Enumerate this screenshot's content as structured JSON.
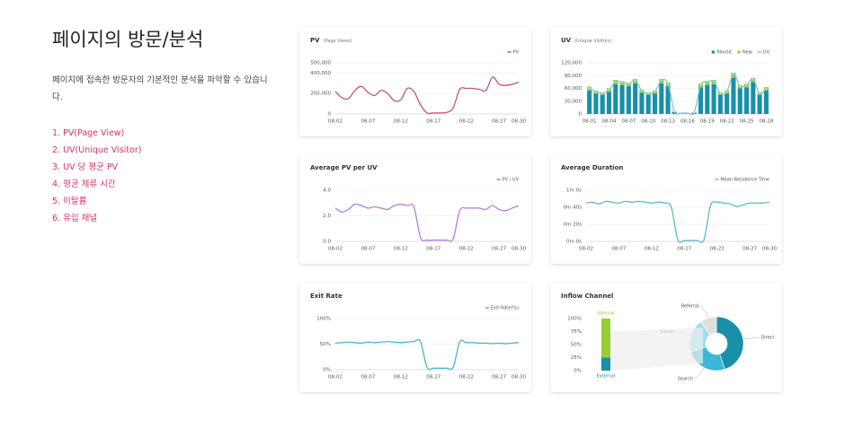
{
  "header": {
    "title": "페이지의 방문/분석",
    "description": "페이지에 접속한 방문자의 기본적인 분석을 파악할 수 있습니다."
  },
  "items": [
    "1. PV(Page View)",
    "2. UV(Unique Visitor)",
    "3. UV 당 평균 PV",
    "4. 평균 체류 시간",
    "5. 이탈률",
    "6. 유입 채널"
  ],
  "chart_data": [
    {
      "type": "line",
      "title": "PV",
      "subtitle": "(Page Views)",
      "categories": [
        "08-02",
        null,
        null,
        null,
        null,
        "08-07",
        null,
        null,
        null,
        null,
        "08-12",
        null,
        null,
        null,
        null,
        "08-17",
        null,
        null,
        null,
        null,
        "08-22",
        null,
        null,
        null,
        null,
        "08-27",
        null,
        null,
        "08-30"
      ],
      "series": [
        {
          "name": "PV",
          "color": "#c2557a",
          "values": [
            220000,
            160000,
            150000,
            230000,
            270000,
            210000,
            180000,
            230000,
            200000,
            130000,
            140000,
            250000,
            220000,
            90000,
            10000,
            10000,
            10000,
            15000,
            60000,
            240000,
            250000,
            250000,
            240000,
            230000,
            360000,
            290000,
            280000,
            290000,
            310000
          ]
        }
      ],
      "ylim": [
        0,
        500000
      ],
      "yticks": [
        0,
        {
          "value": 200000,
          "label": "200,000"
        },
        {
          "value": 400000,
          "label": "400,000"
        },
        {
          "value": 500000,
          "label": "500,000"
        }
      ],
      "grid": true
    },
    {
      "type": "bar",
      "stacked": true,
      "title": "UV",
      "subtitle": "(Unique Visitors)",
      "categories": [
        "08-01",
        null,
        null,
        "08-04",
        null,
        null,
        "08-07",
        null,
        null,
        "08-10",
        null,
        null,
        "08-13",
        null,
        null,
        "08-16",
        null,
        null,
        "08-19",
        null,
        null,
        "08-22",
        null,
        null,
        "08-25",
        null,
        null,
        "08-28"
      ],
      "series": [
        {
          "name": "Revisit",
          "type": "bar",
          "color": "#1a8fa8",
          "values": [
            55000,
            48000,
            45000,
            52000,
            70000,
            68000,
            65000,
            72000,
            50000,
            45000,
            48000,
            72000,
            65000,
            5000,
            2000,
            2000,
            3000,
            62000,
            68000,
            70000,
            45000,
            48000,
            85000,
            60000,
            62000,
            75000,
            45000,
            55000
          ]
        },
        {
          "name": "New",
          "type": "bar",
          "color": "#9acd32",
          "values": [
            9000,
            7000,
            6000,
            8000,
            10000,
            9000,
            8000,
            10000,
            7000,
            6000,
            7000,
            10000,
            9000,
            1000,
            500,
            500,
            500,
            9000,
            10000,
            10000,
            6000,
            7000,
            12000,
            8000,
            9000,
            10000,
            6000,
            8000
          ]
        },
        {
          "name": "UV",
          "type": "line",
          "color": "#7ec8d8",
          "values": [
            60000,
            52000,
            48000,
            57000,
            76000,
            74000,
            70000,
            79000,
            54000,
            48000,
            52000,
            79000,
            71000,
            5500,
            2200,
            2200,
            3200,
            68000,
            75000,
            77000,
            48000,
            52000,
            95000,
            65000,
            68000,
            82000,
            48000,
            60000
          ]
        }
      ],
      "ylim": [
        0,
        120000
      ],
      "yticks": [
        0,
        {
          "value": 30000,
          "label": "30,000"
        },
        {
          "value": 60000,
          "label": "60,000"
        },
        {
          "value": 90000,
          "label": "90,000"
        },
        {
          "value": 120000,
          "label": "120,000"
        }
      ],
      "grid": true
    },
    {
      "type": "line",
      "title": "Average PV per UV",
      "categories": [
        "08-02",
        null,
        null,
        null,
        null,
        "08-07",
        null,
        null,
        null,
        null,
        "08-12",
        null,
        null,
        null,
        null,
        "08-17",
        null,
        null,
        null,
        null,
        "08-22",
        null,
        null,
        null,
        null,
        "08-27",
        null,
        null,
        "08-30"
      ],
      "series": [
        {
          "name": "PV / UV",
          "color": "#b07fe0",
          "values": [
            2.6,
            2.3,
            2.5,
            2.9,
            2.8,
            2.6,
            2.7,
            2.6,
            2.5,
            2.8,
            2.9,
            2.8,
            2.7,
            0.3,
            0.1,
            0.1,
            0.1,
            0.1,
            0.2,
            2.4,
            2.6,
            2.6,
            2.6,
            2.5,
            2.8,
            2.5,
            2.4,
            2.6,
            2.8
          ]
        }
      ],
      "ylim": [
        0,
        4
      ],
      "yticks": [
        {
          "value": 0,
          "label": "0.0"
        },
        {
          "value": 2,
          "label": "2.0"
        },
        {
          "value": 4,
          "label": "4.0"
        }
      ],
      "grid": true
    },
    {
      "type": "line",
      "title": "Average Duration",
      "categories": [
        "08-02",
        null,
        null,
        null,
        null,
        "08-07",
        null,
        null,
        null,
        null,
        "08-12",
        null,
        null,
        null,
        null,
        "08-17",
        null,
        null,
        null,
        null,
        "08-22",
        null,
        null,
        null,
        null,
        "08-27",
        null,
        null,
        "08-30"
      ],
      "series": [
        {
          "name": "Mean Residence Time",
          "color": "#5bbccc",
          "values": [
            45,
            46,
            44,
            47,
            46,
            45,
            47,
            46,
            47,
            46,
            45,
            46,
            45,
            40,
            2,
            1,
            1,
            1,
            2,
            42,
            46,
            45,
            44,
            41,
            43,
            45,
            45,
            45,
            46
          ]
        }
      ],
      "ylim": [
        0,
        60
      ],
      "yticks": [
        {
          "value": 0,
          "label": "0m 0s"
        },
        {
          "value": 20,
          "label": "0m 20s"
        },
        {
          "value": 40,
          "label": "0m 40s"
        },
        {
          "value": 60,
          "label": "1m 0s"
        }
      ],
      "grid": true
    },
    {
      "type": "line",
      "title": "Exit Rate",
      "categories": [
        "08-02",
        null,
        null,
        null,
        null,
        "08-07",
        null,
        null,
        null,
        null,
        "08-12",
        null,
        null,
        null,
        null,
        "08-17",
        null,
        null,
        null,
        null,
        "08-22",
        null,
        null,
        null,
        null,
        "08-27",
        null,
        null,
        "08-30"
      ],
      "series": [
        {
          "name": "Exit Rate(%)",
          "color": "#4fb3d0",
          "values": [
            52,
            53,
            54,
            53,
            52,
            54,
            53,
            54,
            55,
            54,
            53,
            54,
            55,
            55,
            5,
            3,
            3,
            3,
            5,
            54,
            53,
            53,
            52,
            52,
            51,
            52,
            51,
            52,
            53
          ]
        }
      ],
      "ylim": [
        0,
        100
      ],
      "yticks": [
        {
          "value": 0,
          "label": "0%"
        },
        {
          "value": 50,
          "label": "50%"
        },
        {
          "value": 100,
          "label": "100%"
        }
      ],
      "grid": true
    },
    {
      "type": "pie",
      "donut": true,
      "title": "Inflow Channel",
      "categories": [
        "Direct",
        "Search",
        "Social",
        "Referral"
      ],
      "values": [
        45,
        25,
        20,
        10
      ],
      "colors": [
        "#1a8fa8",
        "#3bb8d8",
        "#9fdcec",
        "#e0e0e0"
      ]
    },
    {
      "type": "bar",
      "stacked": true,
      "categories": [
        null
      ],
      "series": [
        {
          "name": "External",
          "color": "#1a8fa8",
          "values": [
            25
          ]
        },
        {
          "name": "Internal",
          "color": "#9acd32",
          "values": [
            75
          ]
        }
      ],
      "ylim": [
        0,
        100
      ],
      "yticks": [
        {
          "value": 0,
          "label": "0%"
        },
        {
          "value": 25,
          "label": "25%"
        },
        {
          "value": 50,
          "label": "50%"
        },
        {
          "value": 75,
          "label": "75%"
        },
        {
          "value": 100,
          "label": "100%"
        }
      ],
      "grid": false
    }
  ]
}
